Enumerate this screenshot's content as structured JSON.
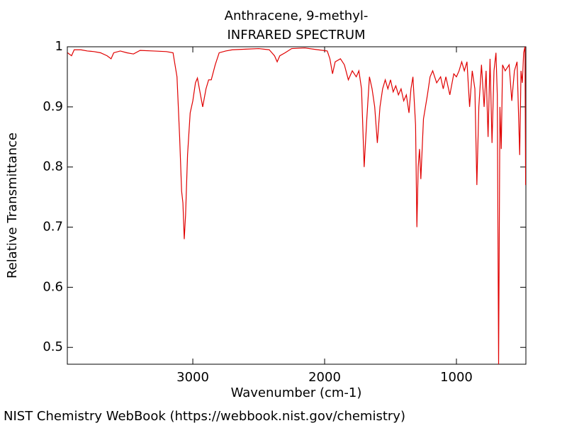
{
  "chart_data": {
    "type": "line",
    "title": "Anthracene, 9-methyl-",
    "subtitle": "INFRARED SPECTRUM",
    "x_label": "Wavenumber (cm-1)",
    "y_label": "Relative Transmittance",
    "xlim": [
      3952,
      473
    ],
    "xticks": [
      3000,
      2000,
      1000
    ],
    "ylim": [
      0.472,
      1.0
    ],
    "yticks": [
      0.5,
      0.6,
      0.7,
      0.8,
      0.9,
      1
    ],
    "color": "#e00000",
    "x": [
      3950,
      3920,
      3900,
      3850,
      3800,
      3750,
      3700,
      3650,
      3620,
      3600,
      3550,
      3500,
      3450,
      3400,
      3300,
      3200,
      3150,
      3120,
      3100,
      3085,
      3075,
      3065,
      3055,
      3040,
      3020,
      3000,
      2980,
      2965,
      2950,
      2925,
      2900,
      2880,
      2860,
      2830,
      2800,
      2750,
      2700,
      2600,
      2500,
      2420,
      2380,
      2360,
      2340,
      2300,
      2250,
      2150,
      2050,
      1980,
      1960,
      1940,
      1920,
      1880,
      1850,
      1820,
      1790,
      1760,
      1740,
      1720,
      1700,
      1680,
      1660,
      1640,
      1620,
      1600,
      1580,
      1560,
      1540,
      1520,
      1500,
      1480,
      1460,
      1440,
      1420,
      1400,
      1380,
      1360,
      1345,
      1330,
      1310,
      1300,
      1290,
      1280,
      1270,
      1250,
      1220,
      1200,
      1180,
      1150,
      1120,
      1100,
      1080,
      1050,
      1020,
      1000,
      980,
      960,
      940,
      920,
      900,
      880,
      860,
      845,
      830,
      810,
      790,
      775,
      760,
      745,
      730,
      715,
      700,
      690,
      680,
      670,
      660,
      650,
      630,
      600,
      580,
      560,
      540,
      520,
      510,
      500,
      490,
      480,
      475
    ],
    "values": [
      0.99,
      0.985,
      0.995,
      0.995,
      0.993,
      0.992,
      0.99,
      0.985,
      0.98,
      0.99,
      0.993,
      0.99,
      0.988,
      0.994,
      0.993,
      0.992,
      0.99,
      0.95,
      0.85,
      0.76,
      0.74,
      0.68,
      0.72,
      0.82,
      0.89,
      0.91,
      0.94,
      0.948,
      0.93,
      0.9,
      0.93,
      0.945,
      0.945,
      0.97,
      0.99,
      0.993,
      0.995,
      0.996,
      0.997,
      0.995,
      0.985,
      0.975,
      0.985,
      0.99,
      0.997,
      0.998,
      0.995,
      0.993,
      0.98,
      0.955,
      0.975,
      0.98,
      0.97,
      0.945,
      0.96,
      0.95,
      0.96,
      0.93,
      0.8,
      0.88,
      0.95,
      0.93,
      0.9,
      0.84,
      0.9,
      0.93,
      0.945,
      0.93,
      0.945,
      0.925,
      0.935,
      0.92,
      0.93,
      0.91,
      0.92,
      0.89,
      0.93,
      0.95,
      0.87,
      0.7,
      0.8,
      0.83,
      0.78,
      0.88,
      0.92,
      0.95,
      0.96,
      0.94,
      0.95,
      0.93,
      0.95,
      0.92,
      0.955,
      0.95,
      0.96,
      0.975,
      0.96,
      0.975,
      0.9,
      0.96,
      0.93,
      0.77,
      0.9,
      0.97,
      0.9,
      0.96,
      0.85,
      0.98,
      0.84,
      0.96,
      0.99,
      0.92,
      0.47,
      0.9,
      0.83,
      0.97,
      0.96,
      0.97,
      0.91,
      0.96,
      0.975,
      0.82,
      0.96,
      0.94,
      0.99,
      1.0,
      0.77
    ]
  },
  "footer": "NIST Chemistry WebBook (https://webbook.nist.gov/chemistry)"
}
